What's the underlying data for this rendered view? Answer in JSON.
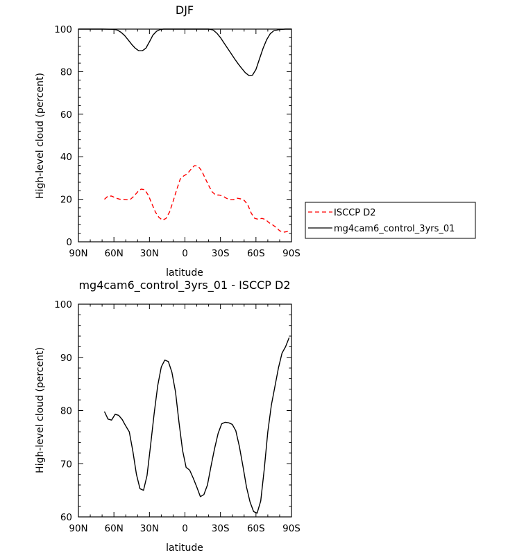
{
  "chart_data": [
    {
      "type": "line",
      "title": "DJF",
      "xlabel": "latitude",
      "ylabel": "High-level cloud (percent)",
      "xlim": [
        90,
        -90
      ],
      "ylim": [
        0,
        100
      ],
      "xticks": [
        90,
        60,
        30,
        0,
        -30,
        -60,
        -90
      ],
      "xtick_labels": [
        "90N",
        "60N",
        "30N",
        "0",
        "30S",
        "60S",
        "90S"
      ],
      "yticks": [
        0,
        20,
        40,
        60,
        80,
        100
      ],
      "ytick_labels": [
        "0",
        "20",
        "40",
        "60",
        "80",
        "100"
      ],
      "legend": "right",
      "series": [
        {
          "name": "ISCCP D2",
          "color": "#ff0000",
          "dash": true,
          "x": [
            68,
            65,
            62,
            58,
            55,
            52,
            49,
            46,
            43,
            40,
            37,
            34,
            31,
            28,
            25,
            22,
            19,
            16,
            13,
            10,
            7,
            4,
            1,
            -2,
            -5,
            -8,
            -11,
            -14,
            -17,
            -20,
            -23,
            -26,
            -29,
            -32,
            -35,
            -38,
            -41,
            -44,
            -47,
            -50,
            -53,
            -56,
            -59,
            -62,
            -65,
            -68,
            -71,
            -74,
            -77,
            -80,
            -83,
            -86,
            -89
          ],
          "values": [
            20,
            21.5,
            21.5,
            20.5,
            20,
            20,
            19.8,
            20,
            21.5,
            23.5,
            24.8,
            24.5,
            22,
            18,
            14,
            11.5,
            10.2,
            11,
            14,
            19,
            24.5,
            29.5,
            31,
            32,
            34,
            35.8,
            35.6,
            33.5,
            30,
            26.5,
            23.5,
            22,
            22,
            21.5,
            20.5,
            19.8,
            19.8,
            20.5,
            20.2,
            19.5,
            17.5,
            13.5,
            11,
            10.6,
            11,
            10.5,
            9,
            8,
            6.8,
            5.2,
            4.5,
            4.8,
            5.5
          ]
        },
        {
          "name": "mg4cam6_control_3yrs_01",
          "color": "#000000",
          "dash": false,
          "x": [
            90,
            70,
            60,
            57,
            54,
            51,
            48,
            45,
            42,
            39,
            36,
            33,
            30,
            27,
            24,
            21,
            18,
            0,
            -15,
            -20,
            -22,
            -24,
            -27,
            -30,
            -33,
            -36,
            -39,
            -42,
            -45,
            -48,
            -51,
            -54,
            -57,
            -60,
            -63,
            -66,
            -69,
            -72,
            -75,
            -80,
            -85,
            -90
          ],
          "values": [
            100,
            100,
            99.9,
            99.5,
            98.5,
            97,
            95,
            92.8,
            91,
            89.8,
            89.8,
            91,
            94,
            97.2,
            99,
            99.8,
            100,
            100,
            100,
            100,
            99.8,
            99.5,
            98,
            96,
            93.5,
            91,
            88.5,
            86,
            83.6,
            81.5,
            79.5,
            78.2,
            78.3,
            81,
            86,
            91,
            95,
            97.8,
            99.2,
            99.8,
            100,
            100
          ]
        }
      ]
    },
    {
      "type": "line",
      "title": "mg4cam6_control_3yrs_01 - ISCCP D2",
      "xlabel": "latitude",
      "ylabel": "High-level cloud (percent)",
      "xlim": [
        90,
        -90
      ],
      "ylim": [
        60,
        100
      ],
      "xticks": [
        90,
        60,
        30,
        0,
        -30,
        -60,
        -90
      ],
      "xtick_labels": [
        "90N",
        "60N",
        "30N",
        "0",
        "30S",
        "60S",
        "90S"
      ],
      "yticks": [
        60,
        70,
        80,
        90,
        100
      ],
      "ytick_labels": [
        "60",
        "70",
        "80",
        "90",
        "100"
      ],
      "series": [
        {
          "color": "#000000",
          "dash": false,
          "x": [
            68,
            65,
            62,
            59,
            56,
            53,
            50,
            47,
            44,
            41,
            38,
            35,
            32,
            29,
            26,
            23,
            20,
            17,
            14,
            11,
            8,
            5,
            2,
            -1,
            -4,
            -7,
            -10,
            -13,
            -16,
            -19,
            -22,
            -25,
            -28,
            -31,
            -34,
            -37,
            -40,
            -43,
            -46,
            -49,
            -52,
            -55,
            -58,
            -61,
            -64,
            -67,
            -70,
            -73,
            -76,
            -79,
            -82,
            -85,
            -88
          ],
          "values": [
            79.8,
            78.4,
            78.2,
            79.3,
            79.1,
            78.3,
            77.1,
            76,
            72.3,
            68,
            65.3,
            65,
            67.8,
            73.5,
            79.5,
            84.7,
            88.2,
            89.5,
            89.2,
            87.2,
            83.5,
            77.7,
            72.5,
            69.3,
            68.8,
            67.3,
            65.6,
            63.8,
            64.2,
            66,
            69.5,
            72.8,
            75.7,
            77.5,
            77.8,
            77.7,
            77.4,
            76.2,
            73.2,
            69.5,
            65.6,
            62.8,
            61,
            60.7,
            63,
            69,
            76,
            81,
            84.5,
            88,
            90.8,
            92,
            93.7
          ]
        }
      ]
    }
  ]
}
